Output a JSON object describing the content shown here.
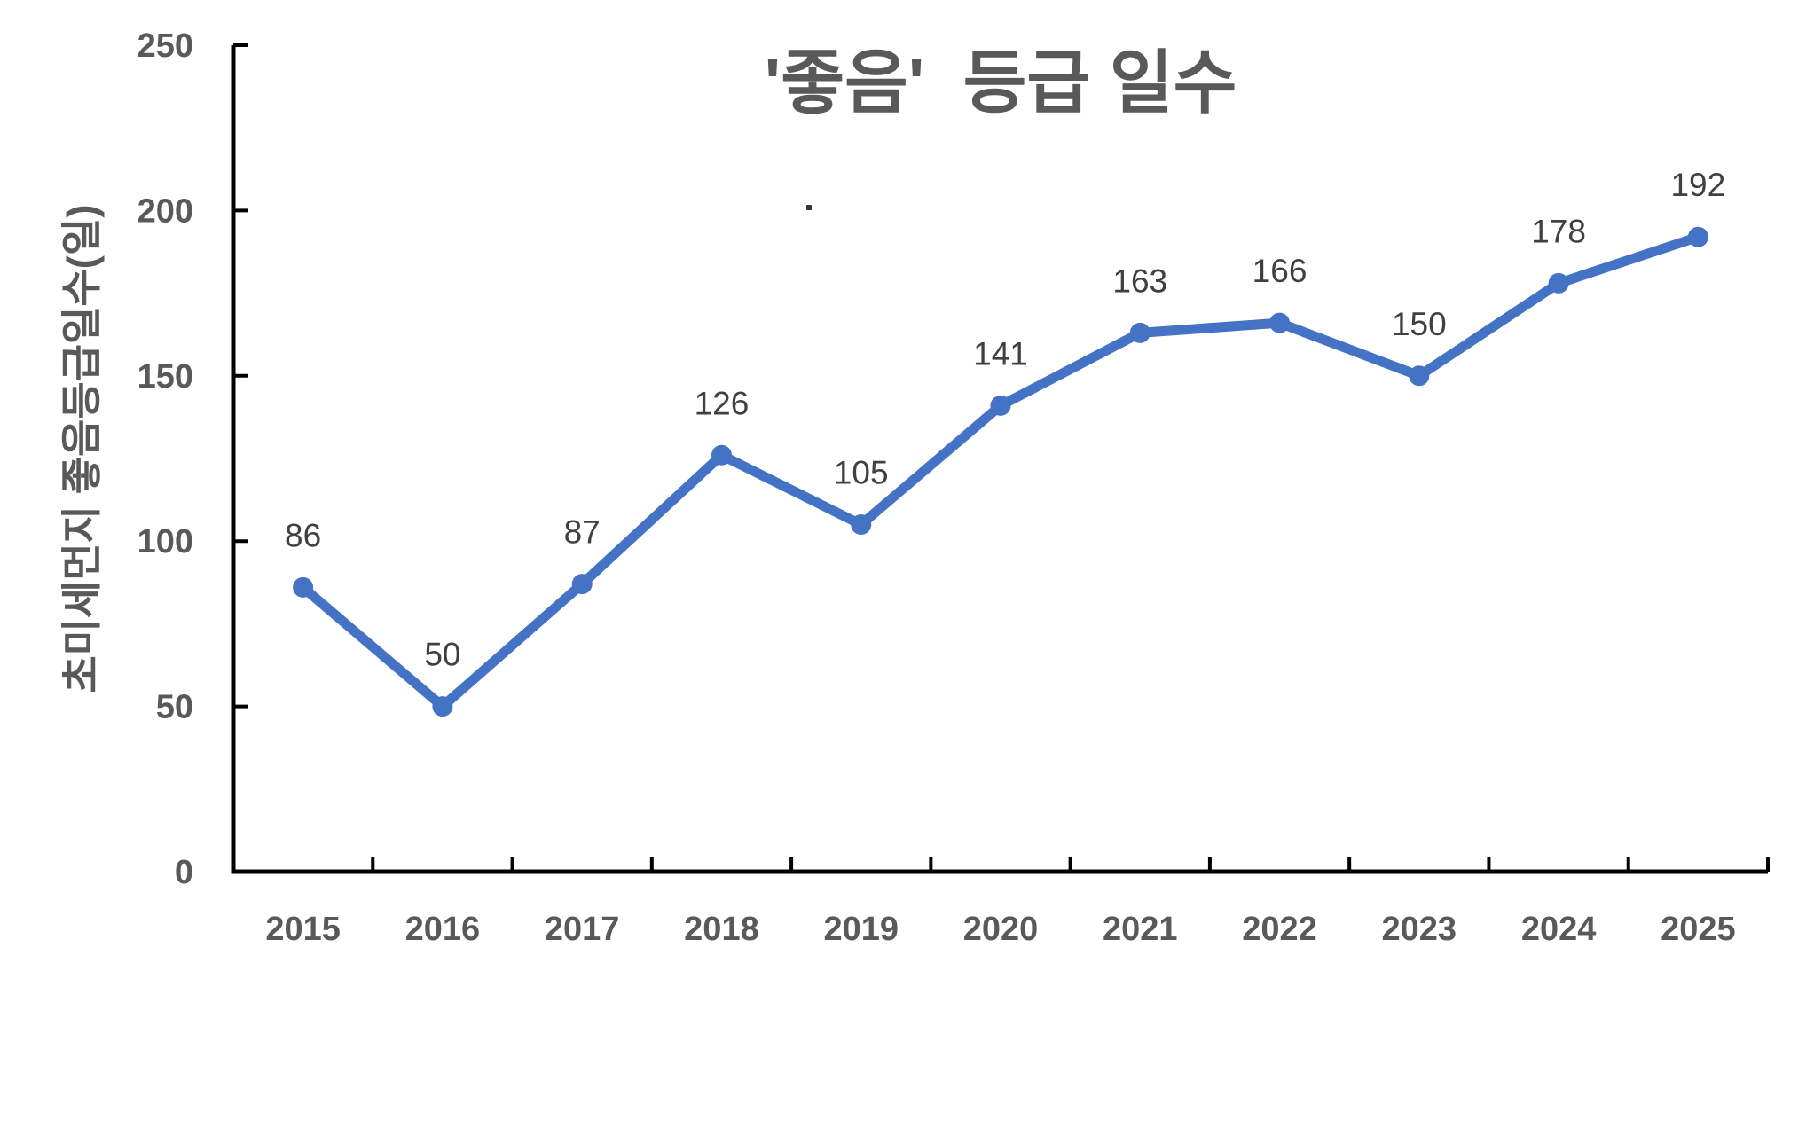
{
  "chart_data": {
    "type": "line",
    "title": "'좋음'  등급 일수",
    "ylabel": "초미세먼지 좋음등급일수(일)",
    "xlabel": "",
    "categories": [
      "2015",
      "2016",
      "2017",
      "2018",
      "2019",
      "2020",
      "2021",
      "2022",
      "2023",
      "2024",
      "2025"
    ],
    "values": [
      86,
      50,
      87,
      126,
      105,
      141,
      163,
      166,
      150,
      178,
      192
    ],
    "ylim": [
      0,
      250
    ],
    "yticks": [
      0,
      50,
      100,
      150,
      200,
      250
    ],
    "grid": false,
    "legend": "none",
    "data_labels": true,
    "marker": "circle",
    "colors": {
      "line": "#4472C4",
      "marker": "#4472C4",
      "data_label": "#404040",
      "axis_text": "#595959",
      "axis_line": "#000000",
      "title": "#595959",
      "background": "#FFFFFF"
    }
  }
}
